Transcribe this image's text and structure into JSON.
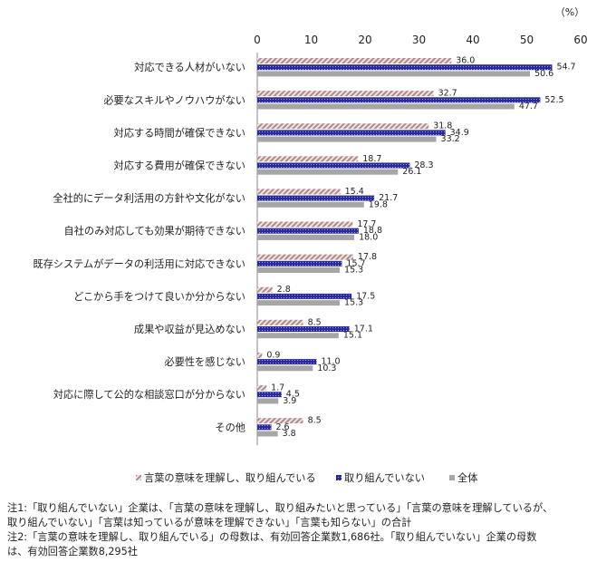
{
  "chart_data": {
    "type": "bar",
    "orientation": "horizontal",
    "unit": "（%）",
    "xlim": [
      0,
      60
    ],
    "xticks": [
      0,
      10,
      20,
      30,
      40,
      50,
      60
    ],
    "grid": false,
    "legend_position": "bottom",
    "categories": [
      "対応できる人材がいない",
      "必要なスキルやノウハウがない",
      "対応する時間が確保できない",
      "対応する費用が確保できない",
      "全社的にデータ利活用の方針や文化がない",
      "自社のみ対応しても効果が期待できない",
      "既存システムがデータの利活用に対応できない",
      "どこから手をつけて良いか分からない",
      "成果や収益が見込めない",
      "必要性を感じない",
      "対応に際して公的な相談窓口が分からない",
      "その他"
    ],
    "series": [
      {
        "name": "言葉の意味を理解し、取り組んでいる",
        "color": "#b08a8a",
        "values": [
          36.0,
          32.7,
          31.8,
          18.7,
          15.4,
          17.7,
          17.8,
          2.8,
          8.5,
          0.9,
          1.7,
          8.5
        ]
      },
      {
        "name": "取り組んでいない",
        "color": "#2a2a9a",
        "values": [
          54.7,
          52.5,
          34.9,
          28.3,
          21.7,
          18.8,
          15.7,
          17.5,
          17.1,
          11.0,
          4.5,
          2.6
        ]
      },
      {
        "name": "全体",
        "color": "#a6a6a6",
        "values": [
          50.6,
          47.7,
          33.2,
          26.1,
          19.8,
          18.0,
          15.3,
          15.3,
          15.1,
          10.3,
          3.9,
          3.8
        ]
      }
    ]
  },
  "notes": [
    "注1:「取り組んでいない」企業は、「言葉の意味を理解し、取り組みたいと思っている」「言葉の意味を理解しているが、",
    "取り組んでいない」「言葉は知っているが意味を理解できない」「言葉も知らない」の合計",
    "注2:「言葉の意味を理解し、取り組んでいる」の母数は、有効回答企業数1,686社。「取り組んでいない」企業の母数",
    "は、有効回答企業数8,295社"
  ]
}
